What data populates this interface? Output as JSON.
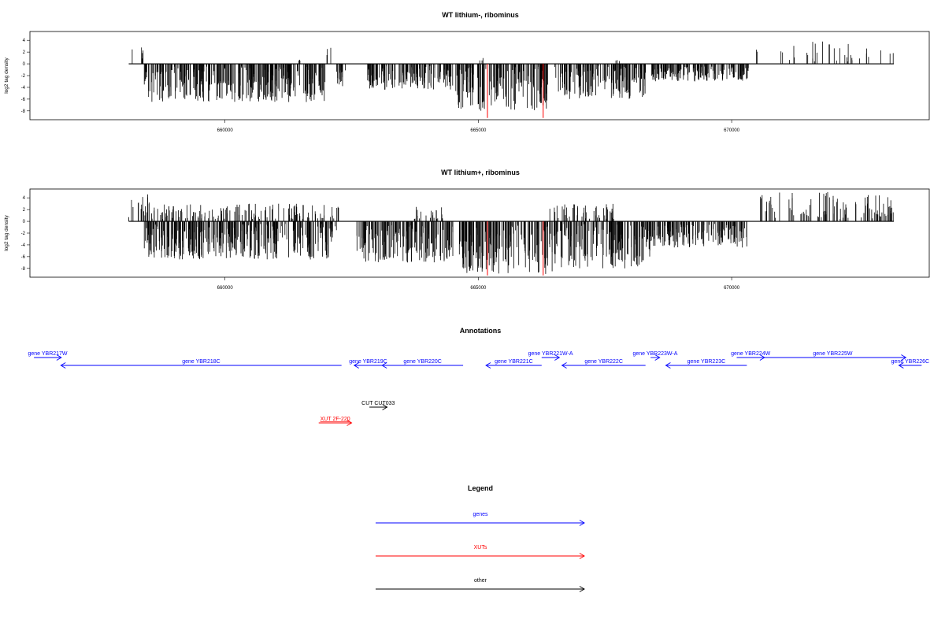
{
  "colors": {
    "gene": "#0000ff",
    "xut": "#ff0000",
    "other": "#000000",
    "highlight": "#ff0000"
  },
  "chart_data": [
    {
      "type": "bar",
      "title": "WT lithium-, ribominus",
      "ylabel": "log2 tag density",
      "ylim": [
        -9.5,
        5.5
      ],
      "yticks": [
        4,
        2,
        0,
        -2,
        -4,
        -6,
        -8
      ],
      "xlim": [
        656150,
        673900
      ],
      "xticks": [
        660000,
        665000,
        670000
      ],
      "xtick_labels": [
        "660000",
        "665000",
        "670000"
      ],
      "grid": false,
      "profile": {
        "forward_regions": [
          {
            "start": 658100,
            "end": 658500,
            "max": 2.8
          },
          {
            "start": 661400,
            "end": 661500,
            "max": 1.6
          },
          {
            "start": 662000,
            "end": 662100,
            "max": 3.3
          },
          {
            "start": 665000,
            "end": 665100,
            "max": 1.1
          },
          {
            "start": 667700,
            "end": 667800,
            "max": 1.1
          },
          {
            "start": 670450,
            "end": 673200,
            "max": 4.0
          }
        ],
        "reverse_regions": [
          {
            "start": 658400,
            "end": 662000,
            "min": -6.5
          },
          {
            "start": 662200,
            "end": 662400,
            "min": -4.0
          },
          {
            "start": 662800,
            "end": 664500,
            "min": -4.5
          },
          {
            "start": 664550,
            "end": 666400,
            "min": -8.0
          },
          {
            "start": 666500,
            "end": 668300,
            "min": -6.0
          },
          {
            "start": 668400,
            "end": 670350,
            "min": -3.0
          }
        ],
        "highlight_lines": [
          665180,
          666280
        ],
        "highlight_value": -9.2
      }
    },
    {
      "type": "bar",
      "title": "WT lithium+, ribominus",
      "ylabel": "log2 tag density",
      "ylim": [
        -9.5,
        5.5
      ],
      "yticks": [
        4,
        2,
        0,
        -2,
        -4,
        -6,
        -8
      ],
      "xlim": [
        656150,
        673900
      ],
      "xticks": [
        660000,
        665000,
        670000
      ],
      "xtick_labels": [
        "660000",
        "665000",
        "670000"
      ],
      "grid": false,
      "profile": {
        "forward_regions": [
          {
            "start": 658100,
            "end": 658550,
            "max": 4.8
          },
          {
            "start": 658550,
            "end": 662300,
            "max": 3.0
          },
          {
            "start": 663700,
            "end": 664300,
            "max": 2.5
          },
          {
            "start": 666400,
            "end": 667700,
            "max": 3.0
          },
          {
            "start": 670500,
            "end": 673200,
            "max": 5.0
          }
        ],
        "reverse_regions": [
          {
            "start": 658400,
            "end": 662200,
            "min": -6.5
          },
          {
            "start": 662600,
            "end": 664500,
            "min": -7.0
          },
          {
            "start": 664600,
            "end": 666500,
            "min": -9.0
          },
          {
            "start": 666500,
            "end": 668400,
            "min": -8.0
          },
          {
            "start": 668400,
            "end": 670300,
            "min": -4.5
          }
        ],
        "highlight_lines": [
          665180,
          666280
        ],
        "highlight_value": -9.2
      }
    }
  ],
  "annotations": {
    "title": "Annotations",
    "features": [
      {
        "label": "gene YBR217W",
        "type": "gene",
        "start": 656230,
        "end": 656770,
        "strand": "+",
        "row": 0
      },
      {
        "label": "gene YBR218C",
        "type": "gene",
        "start": 656760,
        "end": 662300,
        "strand": "-",
        "row": 1
      },
      {
        "label": "gene YBR219C",
        "type": "gene",
        "start": 662550,
        "end": 663100,
        "strand": "-",
        "row": 1
      },
      {
        "label": "gene YBR220C",
        "type": "gene",
        "start": 663100,
        "end": 664700,
        "strand": "-",
        "row": 1
      },
      {
        "label": "gene YBR221C",
        "type": "gene",
        "start": 665150,
        "end": 666250,
        "strand": "-",
        "row": 1
      },
      {
        "label": "gene YBR221W-A",
        "type": "gene",
        "start": 666250,
        "end": 666600,
        "strand": "+",
        "row": 0
      },
      {
        "label": "gene YBR222C",
        "type": "gene",
        "start": 666650,
        "end": 668300,
        "strand": "-",
        "row": 1
      },
      {
        "label": "gene YBR223W-A",
        "type": "gene",
        "start": 668400,
        "end": 668580,
        "strand": "+",
        "row": 0
      },
      {
        "label": "gene YBR223C",
        "type": "gene",
        "start": 668700,
        "end": 670300,
        "strand": "-",
        "row": 1
      },
      {
        "label": "gene YBR224W",
        "type": "gene",
        "start": 670100,
        "end": 670650,
        "strand": "+",
        "row": 0
      },
      {
        "label": "gene YBR225W",
        "type": "gene",
        "start": 670550,
        "end": 673440,
        "strand": "+",
        "row": 0
      },
      {
        "label": "gene YBR226C",
        "type": "gene",
        "start": 673300,
        "end": 673750,
        "strand": "-",
        "row": 1
      },
      {
        "label": "CUT CUT033",
        "type": "other",
        "start": 662850,
        "end": 663200,
        "strand": "+",
        "row": 2
      },
      {
        "label": "XUT 2F-220",
        "type": "xut",
        "start": 661850,
        "end": 662500,
        "strand": "+",
        "row": 3
      }
    ]
  },
  "legend": {
    "title": "Legend",
    "items": [
      {
        "label": "genes",
        "type": "gene"
      },
      {
        "label": "XUTs",
        "type": "xut"
      },
      {
        "label": "other",
        "type": "other"
      }
    ]
  }
}
